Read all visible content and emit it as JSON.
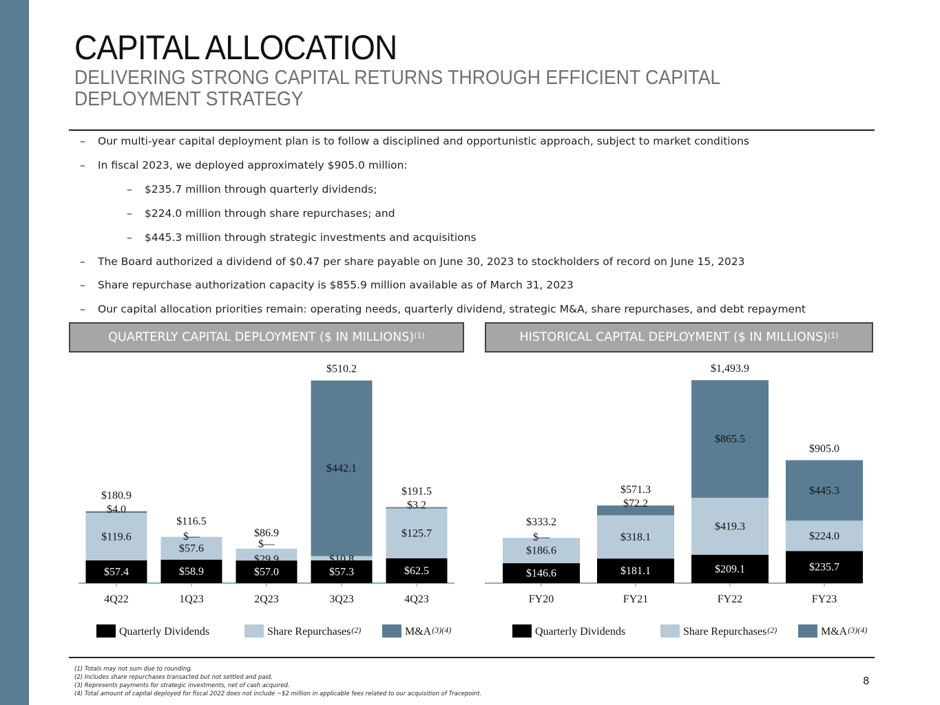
{
  "title": "CAPITAL ALLOCATION",
  "subtitle": "DELIVERING STRONG CAPITAL RETURNS THROUGH EFFICIENT CAPITAL DEPLOYMENT STRATEGY",
  "bullets": [
    {
      "dash": "–",
      "text": "Our multi-year capital deployment plan is to follow a disciplined and opportunistic approach, subject to market conditions",
      "level": 1
    },
    {
      "dash": "–",
      "text": "In fiscal 2023, we deployed approximately $905.0 million:",
      "level": 1
    },
    {
      "dash": "–",
      "text": "$235.7 million through quarterly dividends;",
      "level": 2
    },
    {
      "dash": "–",
      "text": "$224.0 million through share repurchases; and",
      "level": 2
    },
    {
      "dash": "–",
      "text": "$445.3 million through strategic investments and acquisitions",
      "level": 2
    },
    {
      "dash": "–",
      "text": "The Board authorized a dividend of $0.47 per share payable on June 30, 2023 to stockholders of record on June 15, 2023",
      "level": 1
    },
    {
      "dash": "–",
      "text": "Share repurchase authorization capacity is $855.9 million available as of March 31, 2023",
      "level": 1
    },
    {
      "dash": "–",
      "text": "Our capital allocation priorities remain: operating needs, quarterly dividend, strategic M&A, share repurchases, and debt repayment",
      "level": 1
    }
  ],
  "panels": {
    "quarterly_title": "QUARTERLY CAPITAL DEPLOYMENT ($ IN MILLIONS)",
    "historical_title": "HISTORICAL CAPITAL DEPLOYMENT ($ IN MILLIONS)",
    "sup": "(1)"
  },
  "colors": {
    "dividends": "#000000",
    "repurchases": "#b7cbd8",
    "ma": "#5b7d94",
    "band": "#5b7d94"
  },
  "chart_data": [
    {
      "type": "bar",
      "stacked": true,
      "title": "QUARTERLY CAPITAL DEPLOYMENT ($ IN MILLIONS)",
      "categories": [
        "4Q22",
        "1Q23",
        "2Q23",
        "3Q23",
        "4Q23"
      ],
      "series": [
        {
          "name": "Quarterly Dividends",
          "note": "",
          "values": [
            57.4,
            58.9,
            57.0,
            57.3,
            62.5
          ],
          "labels": [
            "$57.4",
            "$58.9",
            "$57.0",
            "$57.3",
            "$62.5"
          ]
        },
        {
          "name": "Share Repurchases",
          "note": "(2)",
          "values": [
            119.6,
            57.6,
            29.9,
            10.8,
            125.7
          ],
          "labels": [
            "$119.6",
            "$57.6",
            "$29.9",
            "$10.8",
            "$125.7"
          ]
        },
        {
          "name": "M&A",
          "note": "(3)(4)",
          "values": [
            4.0,
            0,
            0,
            442.1,
            3.2
          ],
          "labels": [
            "$4.0",
            "$—",
            "$—",
            "$442.1",
            "$3.2"
          ]
        }
      ],
      "totals": [
        "$180.9",
        "$116.5",
        "$86.9",
        "$510.2",
        "$191.5"
      ],
      "ylim": [
        0,
        520
      ],
      "xlabel": "",
      "ylabel": ""
    },
    {
      "type": "bar",
      "stacked": true,
      "title": "HISTORICAL CAPITAL DEPLOYMENT ($ IN MILLIONS)",
      "categories": [
        "FY20",
        "FY21",
        "FY22",
        "FY23"
      ],
      "series": [
        {
          "name": "Quarterly Dividends",
          "note": "",
          "values": [
            146.6,
            181.1,
            209.1,
            235.7
          ],
          "labels": [
            "$146.6",
            "$181.1",
            "$209.1",
            "$235.7"
          ]
        },
        {
          "name": "Share Repurchases",
          "note": "(2)",
          "values": [
            186.6,
            318.1,
            419.3,
            224.0
          ],
          "labels": [
            "$186.6",
            "$318.1",
            "$419.3",
            "$224.0"
          ]
        },
        {
          "name": "M&A",
          "note": "(3)(4)",
          "values": [
            0,
            72.2,
            865.5,
            445.3
          ],
          "labels": [
            "$—",
            "$72.2",
            "$865.5",
            "$445.3"
          ]
        }
      ],
      "totals": [
        "$333.2",
        "$571.3",
        "$1,493.9",
        "$905.0"
      ],
      "ylim": [
        0,
        1520
      ],
      "xlabel": "",
      "ylabel": ""
    }
  ],
  "footnotes": [
    "(1) Totals may not sum due to rounding.",
    "(2) Includes share repurchases transacted but not settled and paid.",
    "(3) Represents payments for strategic investments, net of cash acquired.",
    "(4) Total amount of capital deployed for fiscal 2022 does not include ~$2 million in applicable fees related to our acquisition of Tracepoint."
  ],
  "page_number": "8"
}
